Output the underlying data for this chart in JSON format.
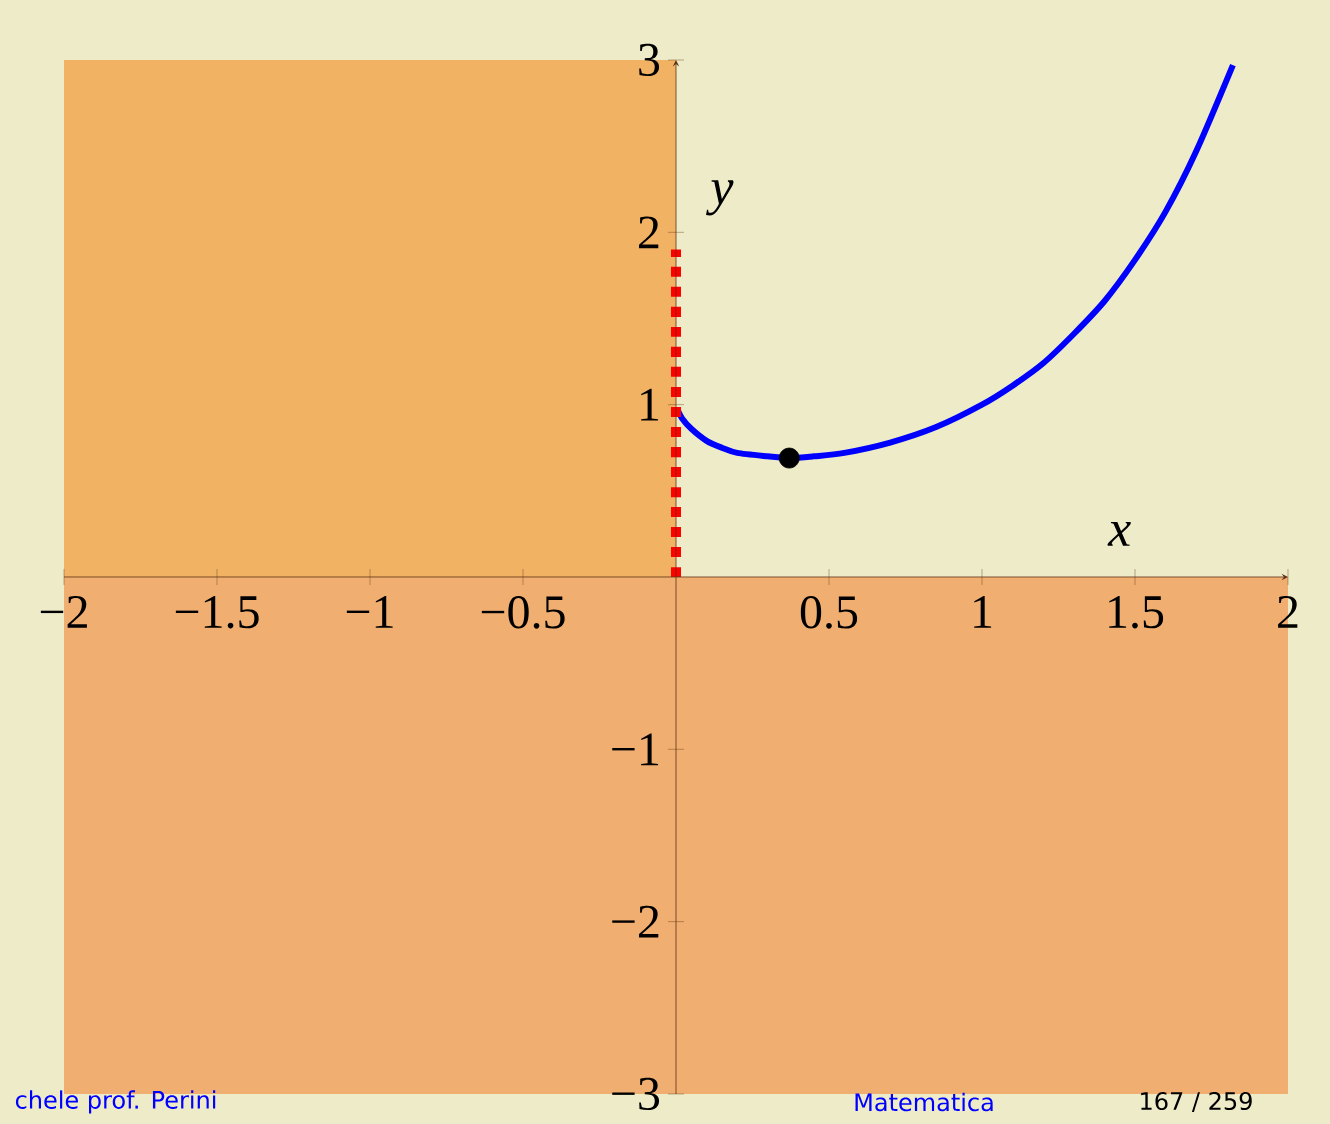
{
  "chart_data": {
    "type": "line",
    "xlabel": "x",
    "ylabel": "y",
    "xlim": [
      -2,
      2
    ],
    "ylim": [
      -3,
      3
    ],
    "xticks": [
      {
        "value": -2,
        "label": "−2"
      },
      {
        "value": -1.5,
        "label": "−1.5"
      },
      {
        "value": -1,
        "label": "−1"
      },
      {
        "value": -0.5,
        "label": "−0.5"
      },
      0.5,
      1,
      1.5,
      2
    ],
    "yticks": [
      {
        "value": -3,
        "label": "−3"
      },
      {
        "value": -2,
        "label": "−2"
      },
      {
        "value": -1,
        "label": "−1"
      },
      1,
      2,
      3
    ],
    "bands": [
      {
        "axis": "x",
        "from": -2,
        "to": 0,
        "color": "#f2b264"
      },
      {
        "axis": "y",
        "from": -3,
        "to": 0,
        "color": "#f0ae70"
      }
    ],
    "series": [
      {
        "color": "#0000ff",
        "line_style": "solid",
        "marker": "none",
        "x": [
          0.005,
          0.02,
          0.05,
          0.1,
          0.15,
          0.2,
          0.3,
          0.37,
          0.45,
          0.55,
          0.7,
          0.85,
          1,
          1.1,
          1.2,
          1.3,
          1.4,
          1.5,
          1.6,
          1.7,
          1.82
        ],
        "values": [
          0.97,
          0.92,
          0.86,
          0.79,
          0.75,
          0.72,
          0.7,
          0.69,
          0.7,
          0.72,
          0.78,
          0.87,
          1,
          1.11,
          1.24,
          1.41,
          1.6,
          1.84,
          2.12,
          2.47,
          2.97
        ]
      },
      {
        "color": "#ff0000",
        "line_style": "dotted",
        "marker": "none",
        "x": [
          0,
          0
        ],
        "values": [
          0,
          1.9
        ]
      },
      {
        "type": "scatter",
        "color": "#000000",
        "marker": "circle",
        "x": [
          0.37
        ],
        "values": [
          0.69
        ]
      }
    ],
    "annotations": [
      "chele prof. Perini",
      "Matematica",
      "167 / 259"
    ]
  }
}
